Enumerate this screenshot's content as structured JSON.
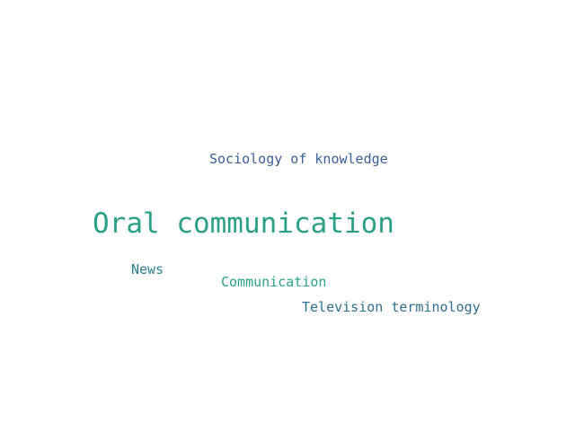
{
  "words": [
    {
      "text": "Sociology of knowledge",
      "color": "#3b6096"
    },
    {
      "text": "Oral communication",
      "color": "#2ca087"
    },
    {
      "text": "News",
      "color": "#2f7f93"
    },
    {
      "text": "Communication",
      "color": "#2aa18a"
    },
    {
      "text": "Television terminology",
      "color": "#2f6f8f"
    }
  ]
}
